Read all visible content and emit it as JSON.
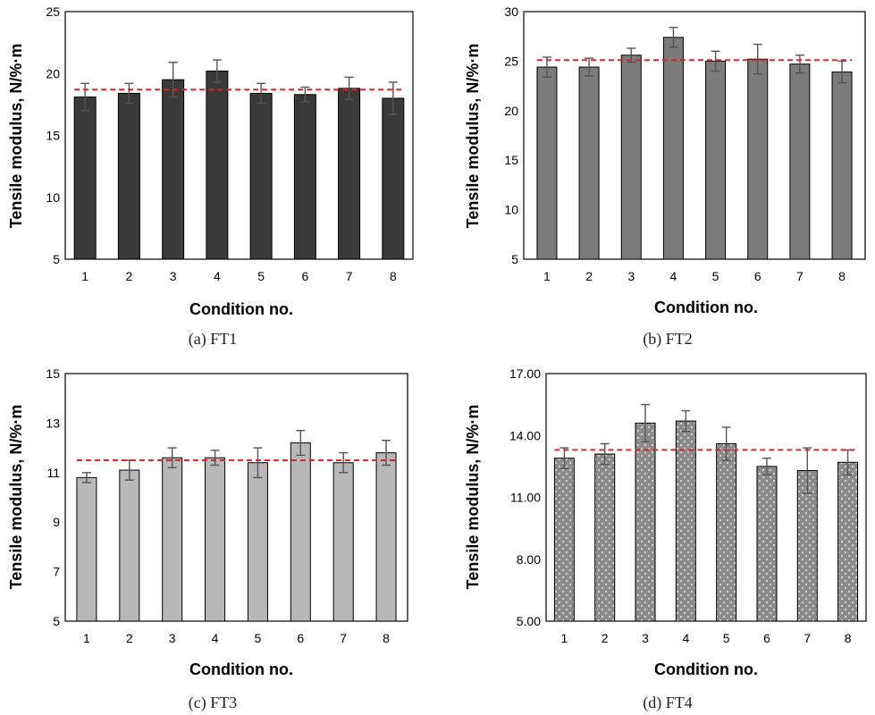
{
  "chart_data": [
    {
      "type": "bar",
      "caption": "(a) FT1",
      "xlabel": "Condition no.",
      "ylabel": "Tensile modulus, N/%·m",
      "categories": [
        "1",
        "2",
        "3",
        "4",
        "5",
        "6",
        "7",
        "8"
      ],
      "values": [
        18.1,
        18.4,
        19.5,
        20.2,
        18.4,
        18.3,
        18.8,
        18.0
      ],
      "errors": [
        1.1,
        0.8,
        1.4,
        0.9,
        0.8,
        0.6,
        0.9,
        1.3
      ],
      "mean_line": 18.7,
      "ylim": [
        5,
        25
      ],
      "yticks": [
        "5",
        "10",
        "15",
        "20",
        "25"
      ],
      "bar_color": "#3a3a3a",
      "pattern": "solid",
      "mean_line_color": "#d62828"
    },
    {
      "type": "bar",
      "caption": "(b) FT2",
      "xlabel": "Condition no.",
      "ylabel": "Tensile modulus, N/%·m",
      "categories": [
        "1",
        "2",
        "3",
        "4",
        "5",
        "6",
        "7",
        "8"
      ],
      "values": [
        24.4,
        24.4,
        25.6,
        27.4,
        25.0,
        25.2,
        24.7,
        23.9
      ],
      "errors": [
        1.0,
        0.9,
        0.7,
        1.0,
        1.0,
        1.5,
        0.9,
        1.1
      ],
      "mean_line": 25.1,
      "ylim": [
        5,
        30
      ],
      "yticks": [
        "5",
        "10",
        "15",
        "20",
        "25",
        "30"
      ],
      "bar_color": "#7b7b7b",
      "pattern": "solid",
      "mean_line_color": "#d62828"
    },
    {
      "type": "bar",
      "caption": "(c) FT3",
      "xlabel": "Condition no.",
      "ylabel": "Tensile modulus, N/%·m",
      "categories": [
        "1",
        "2",
        "3",
        "4",
        "5",
        "6",
        "7",
        "8"
      ],
      "values": [
        10.8,
        11.1,
        11.6,
        11.6,
        11.4,
        12.2,
        11.4,
        11.8
      ],
      "errors": [
        0.2,
        0.4,
        0.4,
        0.3,
        0.6,
        0.5,
        0.4,
        0.5
      ],
      "mean_line": 11.5,
      "ylim": [
        5,
        15
      ],
      "yticks": [
        "5",
        "7",
        "9",
        "11",
        "13",
        "15"
      ],
      "bar_color": "#b8b8b8",
      "pattern": "solid",
      "mean_line_color": "#d62828"
    },
    {
      "type": "bar",
      "caption": "(d) FT4",
      "xlabel": "Condition no.",
      "ylabel": "Tensile modulus, N/%·m",
      "categories": [
        "1",
        "2",
        "3",
        "4",
        "5",
        "6",
        "7",
        "8"
      ],
      "values": [
        12.9,
        13.1,
        14.6,
        14.7,
        13.6,
        12.5,
        12.3,
        12.7
      ],
      "errors": [
        0.5,
        0.5,
        0.9,
        0.5,
        0.8,
        0.4,
        1.1,
        0.6
      ],
      "mean_line": 13.3,
      "ylim": [
        5,
        17
      ],
      "yticks": [
        "5.00",
        "8.00",
        "11.00",
        "14.00",
        "17.00"
      ],
      "bar_color": "#8c8c8c",
      "pattern": "dots",
      "mean_line_color": "#d62828"
    }
  ]
}
